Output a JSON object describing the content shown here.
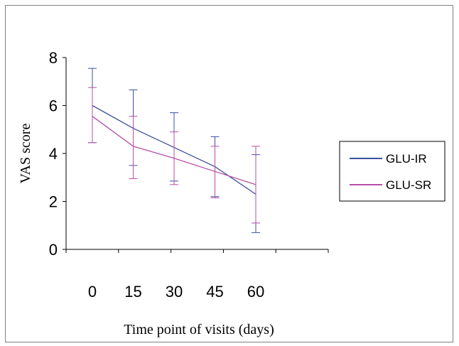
{
  "chart_data": {
    "type": "line",
    "title": "",
    "xlabel": "Time point of visits (days)",
    "ylabel": "VAS score",
    "categories": [
      "0",
      "15",
      "30",
      "45",
      "60"
    ],
    "ylim": [
      0,
      8
    ],
    "yticks": [
      "0",
      "2",
      "4",
      "6",
      "8"
    ],
    "grid": false,
    "legend_position": "right",
    "series": [
      {
        "name": "GLU-IR",
        "color": "#3B4FA0",
        "values": [
          6.0,
          5.05,
          4.25,
          3.45,
          2.3
        ],
        "error_low": [
          4.45,
          3.5,
          2.85,
          2.2,
          0.7
        ],
        "error_high": [
          7.55,
          6.65,
          5.7,
          4.7,
          3.95
        ]
      },
      {
        "name": "GLU-SR",
        "color": "#B54FA6",
        "values": [
          5.55,
          4.3,
          3.8,
          3.25,
          2.7
        ],
        "error_low": [
          4.45,
          2.95,
          2.7,
          2.15,
          1.1
        ],
        "error_high": [
          6.75,
          5.55,
          4.9,
          4.3,
          4.3
        ]
      }
    ]
  }
}
